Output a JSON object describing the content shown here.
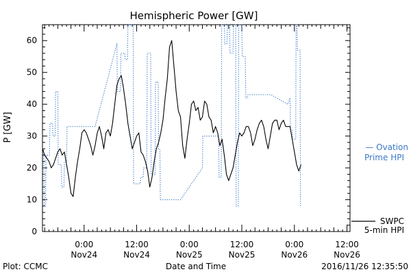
{
  "chart_data": {
    "type": "line",
    "title": "Hemispheric Power [GW]",
    "xlabel": "Date and Time",
    "ylabel": "P [GW]",
    "ylim": [
      0,
      65
    ],
    "y_ticks": [
      0,
      10,
      20,
      30,
      40,
      50,
      60
    ],
    "x_ticks": [
      {
        "t": 0,
        "top": "0:00",
        "bottom": "Nov24"
      },
      {
        "t": 12,
        "top": "12:00",
        "bottom": "Nov24"
      },
      {
        "t": 24,
        "top": "0:00",
        "bottom": "Nov25"
      },
      {
        "t": 36,
        "top": "12:00",
        "bottom": "Nov25"
      },
      {
        "t": 48,
        "top": "0:00",
        "bottom": "Nov26"
      },
      {
        "t": 60,
        "top": "12:00",
        "bottom": "Nov26"
      }
    ],
    "x_unit": "hours from 2016-11-24 00:00 UT",
    "xlim": [
      -9.5,
      60.7
    ],
    "grid": false,
    "series": [
      {
        "name_lines": [
          "— Ovation",
          "Prime HPI"
        ],
        "style": "dotted",
        "color": "#3a78c8",
        "points": [
          [
            -9.5,
            26
          ],
          [
            -9.2,
            26
          ],
          [
            -9.1,
            8
          ],
          [
            -8.8,
            8
          ],
          [
            -8.7,
            24
          ],
          [
            -7.9,
            24
          ],
          [
            -7.8,
            34
          ],
          [
            -7.2,
            34
          ],
          [
            -7.1,
            30
          ],
          [
            -6.6,
            30
          ],
          [
            -6.5,
            44
          ],
          [
            -6.0,
            44
          ],
          [
            -5.9,
            21
          ],
          [
            -5.2,
            21
          ],
          [
            -5.1,
            14
          ],
          [
            -4.6,
            14
          ],
          [
            -4.5,
            22
          ],
          [
            -4.0,
            22
          ],
          [
            -3.9,
            33
          ],
          [
            1.5,
            33
          ],
          [
            2.5,
            33
          ],
          [
            7.5,
            59
          ],
          [
            7.6,
            44
          ],
          [
            8.3,
            44
          ],
          [
            8.4,
            56
          ],
          [
            9.3,
            56
          ],
          [
            9.4,
            54
          ],
          [
            9.9,
            54
          ],
          [
            10.0,
            65
          ],
          [
            11.2,
            65
          ],
          [
            11.3,
            15
          ],
          [
            12.8,
            15
          ],
          [
            12.9,
            17
          ],
          [
            13.5,
            17
          ],
          [
            13.6,
            20
          ],
          [
            14.3,
            20
          ],
          [
            14.4,
            56
          ],
          [
            15.2,
            56
          ],
          [
            15.3,
            18
          ],
          [
            16.2,
            18
          ],
          [
            16.3,
            47
          ],
          [
            16.9,
            47
          ],
          [
            17.0,
            26
          ],
          [
            17.3,
            26
          ],
          [
            17.4,
            10
          ],
          [
            22.0,
            10
          ],
          [
            27.0,
            20
          ],
          [
            27.1,
            30
          ],
          [
            30.7,
            30
          ],
          [
            30.8,
            17
          ],
          [
            31.3,
            17
          ],
          [
            31.4,
            65
          ],
          [
            32.0,
            65
          ],
          [
            32.1,
            59
          ],
          [
            32.6,
            59
          ],
          [
            32.7,
            65
          ],
          [
            33.2,
            65
          ],
          [
            33.3,
            56
          ],
          [
            34.0,
            56
          ],
          [
            34.1,
            65
          ],
          [
            34.6,
            65
          ],
          [
            34.7,
            8
          ],
          [
            35.2,
            8
          ],
          [
            35.3,
            65
          ],
          [
            36.0,
            65
          ],
          [
            36.1,
            55
          ],
          [
            36.8,
            55
          ],
          [
            36.9,
            42
          ],
          [
            37.3,
            42
          ],
          [
            37.4,
            43
          ],
          [
            42.6,
            43
          ],
          [
            46.5,
            40
          ],
          [
            47.0,
            42
          ],
          [
            47.1,
            32
          ],
          [
            47.5,
            32
          ],
          [
            47.6,
            29
          ],
          [
            48.3,
            29
          ],
          [
            48.4,
            65
          ],
          [
            48.6,
            65
          ],
          [
            48.7,
            57
          ],
          [
            49.3,
            57
          ],
          [
            49.4,
            8
          ],
          [
            49.5,
            8
          ]
        ]
      },
      {
        "name_lines": [
          "SWPC",
          "5-min HPI"
        ],
        "style": "solid",
        "color": "#000000",
        "points": [
          [
            -9.5,
            26
          ],
          [
            -9.0,
            24
          ],
          [
            -8.5,
            23
          ],
          [
            -8.0,
            22
          ],
          [
            -7.5,
            20
          ],
          [
            -7.0,
            21
          ],
          [
            -6.5,
            23
          ],
          [
            -6.0,
            25
          ],
          [
            -5.5,
            26
          ],
          [
            -5.0,
            24
          ],
          [
            -4.5,
            25
          ],
          [
            -4.0,
            21
          ],
          [
            -3.5,
            17
          ],
          [
            -3.0,
            12
          ],
          [
            -2.5,
            11
          ],
          [
            -2.0,
            17
          ],
          [
            -1.5,
            22
          ],
          [
            -1.0,
            26
          ],
          [
            -0.5,
            31
          ],
          [
            0.0,
            32
          ],
          [
            0.5,
            31
          ],
          [
            1.0,
            29
          ],
          [
            1.5,
            27
          ],
          [
            2.0,
            24
          ],
          [
            2.5,
            27
          ],
          [
            3.0,
            31
          ],
          [
            3.5,
            33
          ],
          [
            4.0,
            30
          ],
          [
            4.5,
            26
          ],
          [
            5.0,
            31
          ],
          [
            5.5,
            32
          ],
          [
            6.0,
            30
          ],
          [
            6.5,
            34
          ],
          [
            7.0,
            40
          ],
          [
            7.5,
            46
          ],
          [
            8.0,
            48
          ],
          [
            8.5,
            49
          ],
          [
            9.0,
            45
          ],
          [
            9.5,
            40
          ],
          [
            10.0,
            34
          ],
          [
            10.5,
            30
          ],
          [
            11.0,
            26
          ],
          [
            11.5,
            28
          ],
          [
            12.0,
            30
          ],
          [
            12.5,
            31
          ],
          [
            13.0,
            25
          ],
          [
            13.5,
            24
          ],
          [
            14.0,
            22
          ],
          [
            14.5,
            19
          ],
          [
            15.0,
            14
          ],
          [
            15.5,
            17
          ],
          [
            16.0,
            22
          ],
          [
            16.5,
            26
          ],
          [
            17.0,
            28
          ],
          [
            17.5,
            31
          ],
          [
            18.0,
            35
          ],
          [
            18.5,
            42
          ],
          [
            19.0,
            48
          ],
          [
            19.5,
            58
          ],
          [
            20.0,
            60
          ],
          [
            20.5,
            52
          ],
          [
            21.0,
            44
          ],
          [
            21.5,
            38
          ],
          [
            22.0,
            36
          ],
          [
            22.5,
            27
          ],
          [
            23.0,
            23
          ],
          [
            23.5,
            29
          ],
          [
            24.0,
            34
          ],
          [
            24.5,
            40
          ],
          [
            25.0,
            41
          ],
          [
            25.5,
            38
          ],
          [
            26.0,
            39
          ],
          [
            26.5,
            35
          ],
          [
            27.0,
            36
          ],
          [
            27.5,
            41
          ],
          [
            28.0,
            40
          ],
          [
            28.5,
            36
          ],
          [
            29.0,
            35
          ],
          [
            29.5,
            31
          ],
          [
            30.0,
            33
          ],
          [
            30.5,
            31
          ],
          [
            31.0,
            27
          ],
          [
            31.5,
            29
          ],
          [
            32.0,
            24
          ],
          [
            32.5,
            18
          ],
          [
            33.0,
            16
          ],
          [
            33.5,
            18
          ],
          [
            34.0,
            20
          ],
          [
            34.5,
            24
          ],
          [
            35.0,
            28
          ],
          [
            35.5,
            31
          ],
          [
            36.0,
            30
          ],
          [
            36.5,
            31
          ],
          [
            37.0,
            33
          ],
          [
            37.5,
            33
          ],
          [
            38.0,
            31
          ],
          [
            38.5,
            27
          ],
          [
            39.0,
            29
          ],
          [
            39.5,
            32
          ],
          [
            40.0,
            34
          ],
          [
            40.5,
            35
          ],
          [
            41.0,
            33
          ],
          [
            41.5,
            29
          ],
          [
            42.0,
            26
          ],
          [
            42.5,
            30
          ],
          [
            43.0,
            34
          ],
          [
            43.5,
            35
          ],
          [
            44.0,
            35
          ],
          [
            44.5,
            32
          ],
          [
            45.0,
            34
          ],
          [
            45.5,
            35
          ],
          [
            46.0,
            33
          ],
          [
            46.5,
            33
          ],
          [
            47.0,
            33
          ],
          [
            47.5,
            29
          ],
          [
            48.0,
            25
          ],
          [
            48.5,
            21
          ],
          [
            49.0,
            19
          ],
          [
            49.5,
            21
          ]
        ]
      }
    ]
  },
  "footer": {
    "left": "Plot: CCMC",
    "center": "Date and Time",
    "right": "2016/11/26 12:35:50"
  }
}
